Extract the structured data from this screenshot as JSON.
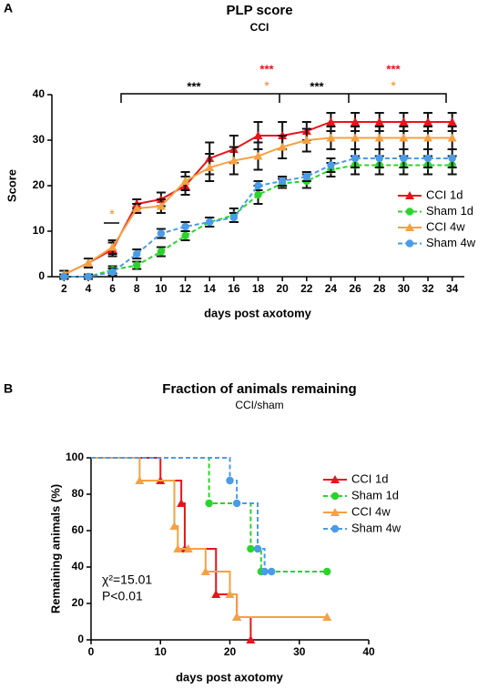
{
  "chart_data": [
    {
      "type": "line",
      "panel": "A",
      "title": "PLP score",
      "subtitle": "CCI",
      "x_label": "days post axotomy",
      "y_label": "Score",
      "x": [
        2,
        4,
        6,
        8,
        10,
        12,
        14,
        16,
        18,
        20,
        22,
        24,
        26,
        28,
        30,
        32,
        34
      ],
      "xlim": [
        1,
        35
      ],
      "xticks": [
        2,
        4,
        6,
        8,
        10,
        12,
        14,
        16,
        18,
        20,
        22,
        24,
        26,
        28,
        30,
        32,
        34
      ],
      "ylim": [
        0,
        40
      ],
      "yticks": [
        0,
        10,
        20,
        30,
        40
      ],
      "legend": "right",
      "series": [
        {
          "name": "CCI 1d",
          "color": "#e8141c",
          "marker": "triangle",
          "dashed": false,
          "values": [
            0.5,
            3,
            6,
            16,
            17,
            20,
            26,
            28,
            31,
            31,
            32,
            34,
            34,
            34,
            34,
            34,
            34
          ],
          "errors": [
            0.8,
            1,
            1.5,
            1,
            1.5,
            2,
            3.5,
            3,
            3,
            3,
            2,
            2,
            2,
            2,
            2,
            2,
            2
          ]
        },
        {
          "name": "Sham 1d",
          "color": "#2bd42b",
          "marker": "circle",
          "dashed": true,
          "values": [
            0,
            0,
            1.5,
            2.5,
            5.5,
            9,
            12,
            13.5,
            18,
            20.5,
            21,
            23.5,
            24.5,
            24.5,
            24.5,
            24.5,
            24.5
          ],
          "errors": [
            0.5,
            0.5,
            0.8,
            0.8,
            1,
            1,
            1,
            1.5,
            2,
            1,
            1.5,
            1.5,
            2,
            2,
            2,
            2,
            2
          ]
        },
        {
          "name": "CCI 4w",
          "color": "#f5a142",
          "marker": "triangle",
          "dashed": false,
          "values": [
            0.5,
            3,
            6.5,
            15,
            15.5,
            21,
            24,
            25.5,
            26.5,
            28.5,
            30,
            30.5,
            30.5,
            30.5,
            30.5,
            30.5,
            30.5
          ],
          "errors": [
            0.8,
            1,
            1.5,
            1,
            1.5,
            2,
            3,
            3,
            3,
            2.5,
            2.5,
            2.5,
            2.5,
            2.5,
            2.5,
            2.5,
            2.5
          ]
        },
        {
          "name": "Sham 4w",
          "color": "#4a9be8",
          "marker": "circle",
          "dashed": true,
          "values": [
            0,
            0,
            1,
            5,
            9.5,
            11,
            12,
            13,
            20,
            21,
            22,
            24.5,
            26,
            26,
            26,
            26,
            26
          ],
          "errors": [
            0.5,
            0.5,
            0.8,
            1,
            1,
            1,
            1,
            1,
            1,
            1,
            1,
            1.5,
            2,
            2,
            2,
            2,
            2
          ]
        }
      ],
      "annotations": [
        {
          "text": "***",
          "color": "#000000"
        },
        {
          "text": "***",
          "color": "#e8141c"
        },
        {
          "text": "*",
          "color": "#f5a142"
        },
        {
          "text": "***",
          "color": "#000000"
        },
        {
          "text": "***",
          "color": "#e8141c"
        },
        {
          "text": "*",
          "color": "#f5a142"
        },
        {
          "text": "*",
          "color": "#f5a142"
        }
      ]
    },
    {
      "type": "step",
      "panel": "B",
      "title": "Fraction of animals remaining",
      "subtitle": "CCI/sham",
      "x_label": "days post axotomy",
      "y_label": "Remaining animals (%)",
      "xlim": [
        0,
        40
      ],
      "xticks": [
        0,
        10,
        20,
        30,
        40
      ],
      "ylim": [
        0,
        100
      ],
      "yticks": [
        0,
        20,
        40,
        60,
        80,
        100
      ],
      "legend": "right",
      "series": [
        {
          "name": "CCI 1d",
          "color": "#e8141c",
          "marker": "triangle",
          "dashed": false,
          "x": [
            0,
            10,
            13,
            13.5,
            18,
            21,
            23
          ],
          "values": [
            100,
            87.5,
            75,
            50,
            25,
            12.5,
            0
          ]
        },
        {
          "name": "Sham 1d",
          "color": "#2bd42b",
          "marker": "circle",
          "dashed": true,
          "x": [
            0,
            17,
            23,
            24.5,
            34
          ],
          "values": [
            100,
            75,
            50,
            37.5,
            37.5
          ]
        },
        {
          "name": "CCI 4w",
          "color": "#f5a142",
          "marker": "triangle",
          "dashed": false,
          "x": [
            0,
            7,
            12,
            12.5,
            14,
            16.5,
            20,
            21,
            34
          ],
          "values": [
            100,
            87.5,
            62.5,
            50,
            50,
            37.5,
            25,
            12.5,
            12.5
          ]
        },
        {
          "name": "Sham 4w",
          "color": "#4a9be8",
          "marker": "circle",
          "dashed": true,
          "x": [
            0,
            20,
            21,
            24,
            25,
            26
          ],
          "values": [
            100,
            87.5,
            75,
            50,
            37.5,
            37.5
          ]
        }
      ],
      "annotations": [
        {
          "text": "χ²=15.01",
          "color": "#000000"
        },
        {
          "text": "P<0.01",
          "color": "#000000"
        }
      ]
    }
  ]
}
